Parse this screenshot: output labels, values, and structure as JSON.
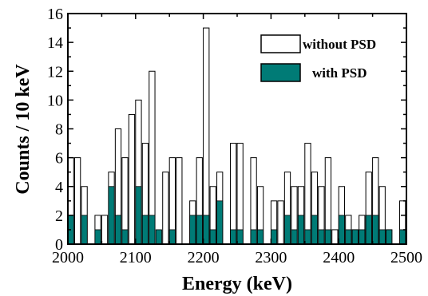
{
  "chart_data": {
    "type": "bar",
    "xlabel": "Energy (keV)",
    "ylabel": "Counts / 10 keV",
    "xlim": [
      2000,
      2500
    ],
    "ylim": [
      0,
      16
    ],
    "bin_width": 10,
    "xticks": [
      "2000",
      "2100",
      "2200",
      "2300",
      "2400",
      "2500"
    ],
    "yticks": [
      "0",
      "2",
      "4",
      "6",
      "8",
      "10",
      "12",
      "14",
      "16"
    ],
    "legend_position": "top-right",
    "x": [
      2000,
      2010,
      2020,
      2030,
      2040,
      2050,
      2060,
      2070,
      2080,
      2090,
      2100,
      2110,
      2120,
      2130,
      2140,
      2150,
      2160,
      2170,
      2180,
      2190,
      2200,
      2210,
      2220,
      2230,
      2240,
      2250,
      2260,
      2270,
      2280,
      2290,
      2300,
      2310,
      2320,
      2330,
      2340,
      2350,
      2360,
      2370,
      2380,
      2390,
      2400,
      2410,
      2420,
      2430,
      2440,
      2450,
      2460,
      2470,
      2480,
      2490
    ],
    "series": [
      {
        "name": "without PSD",
        "color": "#ffffff",
        "values": [
          6,
          6,
          4,
          0,
          2,
          2,
          5,
          8,
          6,
          9,
          10,
          7,
          12,
          0,
          5,
          6,
          6,
          0,
          3,
          6,
          15,
          4,
          5,
          0,
          7,
          7,
          0,
          6,
          4,
          0,
          3,
          3,
          5,
          4,
          4,
          7,
          5,
          4,
          6,
          1,
          4,
          2,
          1,
          2,
          5,
          6,
          4,
          1,
          0,
          3
        ]
      },
      {
        "name": "with PSD",
        "color": "#007b76",
        "values": [
          2,
          0,
          2,
          0,
          1,
          0,
          4,
          2,
          1,
          0,
          4,
          2,
          2,
          1,
          0,
          1,
          0,
          0,
          2,
          2,
          2,
          1,
          3,
          0,
          1,
          1,
          0,
          1,
          1,
          0,
          1,
          0,
          2,
          1,
          2,
          1,
          2,
          1,
          1,
          0,
          2,
          1,
          1,
          1,
          2,
          2,
          1,
          1,
          0,
          1
        ]
      }
    ]
  }
}
